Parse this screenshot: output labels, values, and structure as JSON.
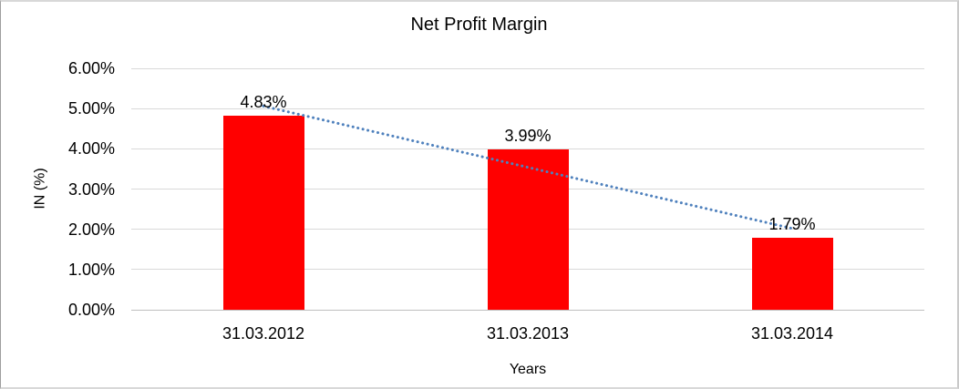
{
  "chart_data": {
    "type": "bar",
    "title": "Net Profit Margin",
    "xlabel": "Years",
    "ylabel": "IN (%)",
    "categories": [
      "31.03.2012",
      "31.03.2013",
      "31.03.2014"
    ],
    "values": [
      4.83,
      3.99,
      1.79
    ],
    "data_labels": [
      "4.83%",
      "3.99%",
      "1.79%"
    ],
    "ylim": [
      0,
      6
    ],
    "ytick_labels": [
      "0.00%",
      "1.00%",
      "2.00%",
      "3.00%",
      "4.00%",
      "5.00%",
      "6.00%"
    ],
    "grid": true,
    "legend": "none",
    "bar_color": "#FF0000",
    "gridline_color": "#D9D9D9",
    "axis_line_color": "#BFBFBF",
    "trendline": {
      "type": "linear",
      "style": "dotted",
      "color": "#4F81BD",
      "start_value": 5.06,
      "end_value": 2.02
    }
  }
}
